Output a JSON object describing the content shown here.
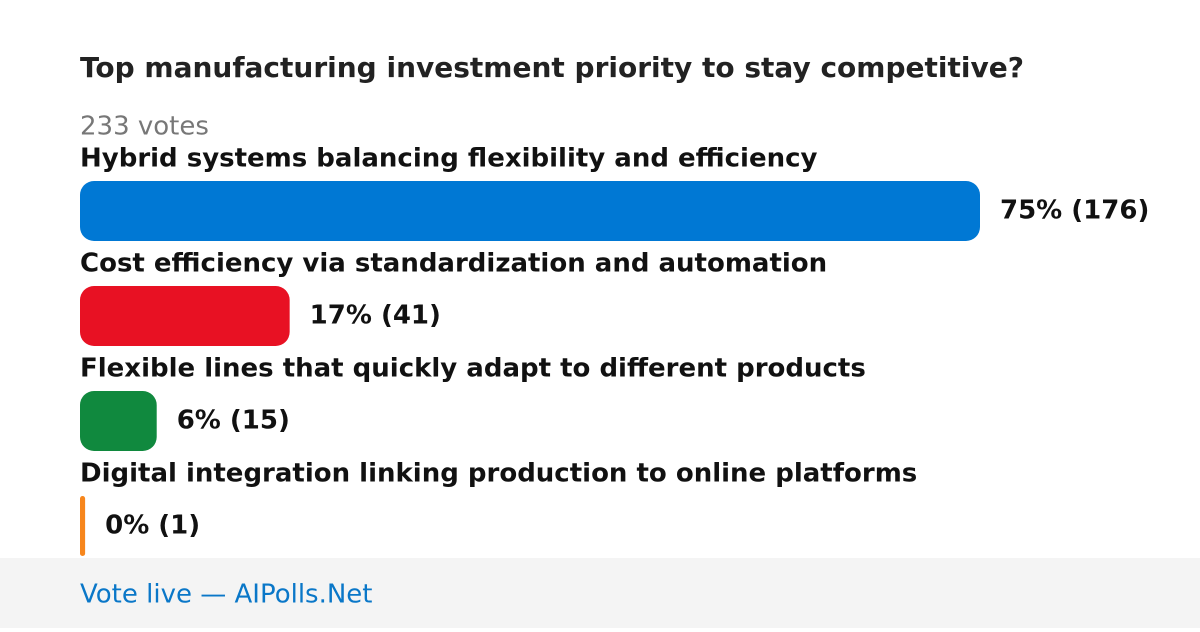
{
  "chart_data": {
    "type": "bar",
    "orientation": "horizontal",
    "title": "Top manufacturing investment priority to stay competitive?",
    "subtitle": "233 votes",
    "categories": [
      "Hybrid systems balancing flexibility and efficiency",
      "Cost efficiency via standardization and automation",
      "Flexible lines that quickly adapt to different products",
      "Digital integration linking production to online platforms"
    ],
    "values": [
      176,
      41,
      15,
      1
    ],
    "value_labels": [
      "75% (176)",
      "17% (41)",
      "6% (15)",
      "0% (1)"
    ],
    "colors": [
      "#0078d4",
      "#e81123",
      "#10893e",
      "#f7861c"
    ],
    "footer": "Vote live — AIPolls.Net"
  }
}
